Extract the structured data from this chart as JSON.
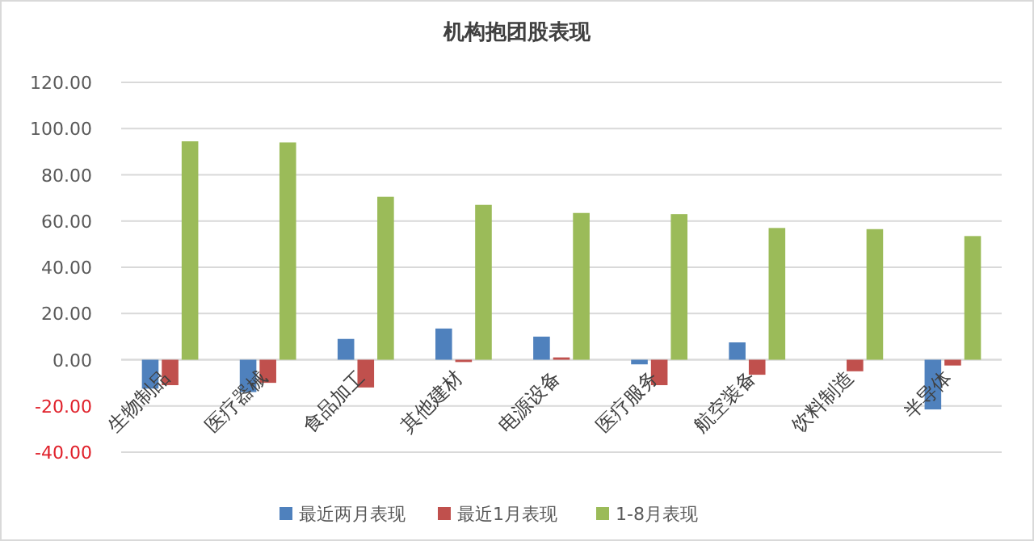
{
  "chart_data": {
    "type": "bar",
    "title": "机构抱团股表现",
    "categories": [
      "生物制品",
      "医疗器械",
      "食品加工",
      "其他建材",
      "电源设备",
      "医疗服务",
      "航空装备",
      "饮料制造",
      "半导体"
    ],
    "series": [
      {
        "name": "最近两月表现",
        "color": "#4f81bd",
        "values": [
          -12.5,
          -14,
          9,
          13.5,
          10,
          -2,
          7.5,
          0,
          -21.5
        ]
      },
      {
        "name": "最近1月表现",
        "color": "#c0504d",
        "values": [
          -11,
          -10,
          -12,
          -1,
          1,
          -11,
          -6.5,
          -5,
          -2.5
        ]
      },
      {
        "name": "1-8月表现",
        "color": "#9bbb59",
        "values": [
          94.5,
          94,
          70.5,
          67,
          63.5,
          63,
          57,
          56.5,
          53.5
        ]
      }
    ],
    "ylim": [
      -40,
      120
    ],
    "yticks": [
      {
        "value": -40,
        "label": "-40.00"
      },
      {
        "value": -20,
        "label": "-20.00"
      },
      {
        "value": 0,
        "label": "0.00"
      },
      {
        "value": 20,
        "label": "20.00"
      },
      {
        "value": 40,
        "label": "40.00"
      },
      {
        "value": 60,
        "label": "60.00"
      },
      {
        "value": 80,
        "label": "80.00"
      },
      {
        "value": 100,
        "label": "100.00"
      },
      {
        "value": 120,
        "label": "120.00"
      }
    ],
    "grid": "y",
    "legend": "bottom"
  }
}
